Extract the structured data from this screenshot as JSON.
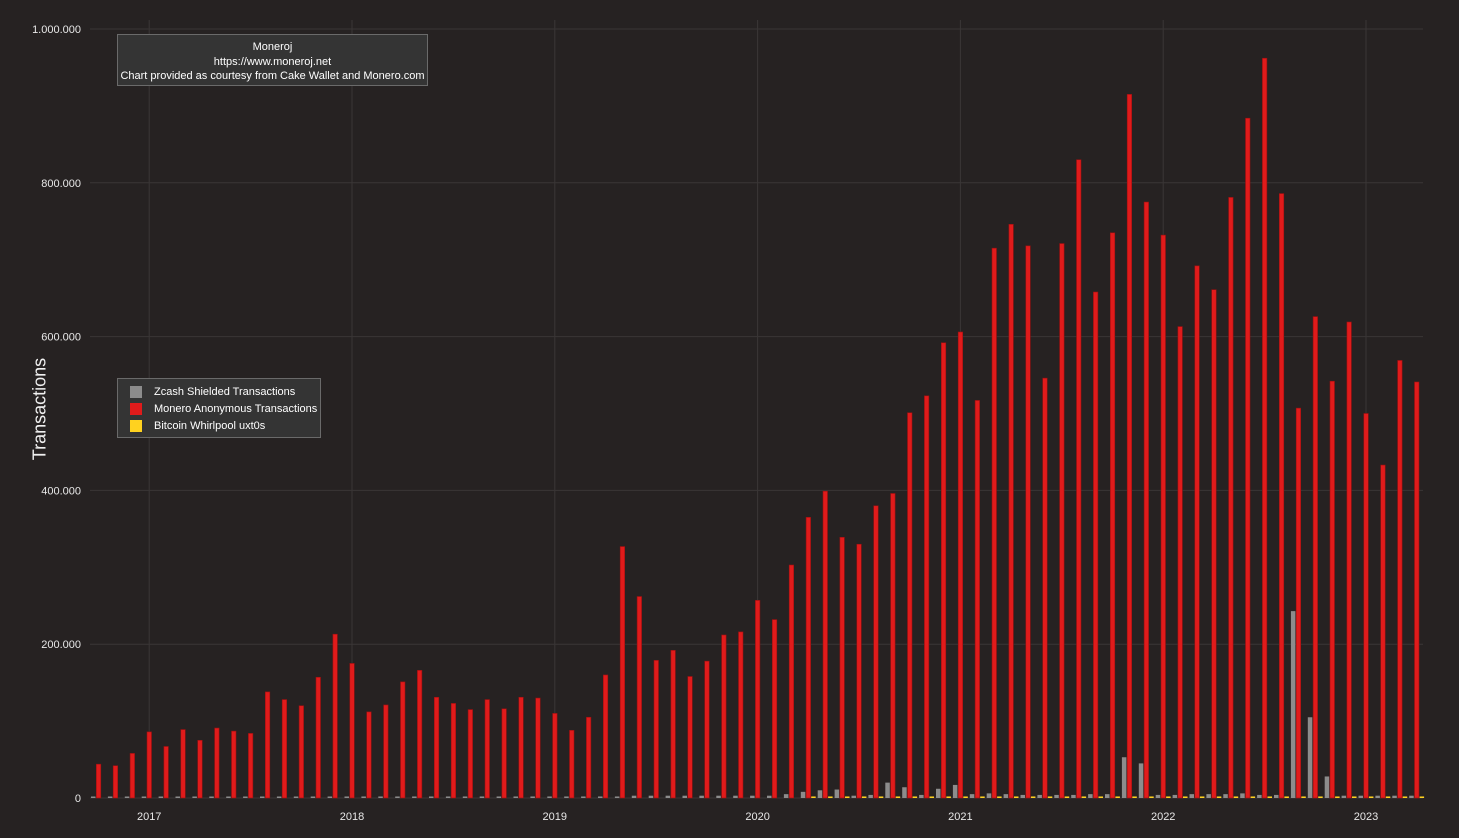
{
  "header": {
    "source_name": "Moneroj",
    "source_url": "https://www.moneroj.net",
    "credit": "Chart provided as courtesy from Cake Wallet and Monero.com"
  },
  "chart_data": {
    "type": "bar",
    "ylabel": "Transactions",
    "ylim": [
      0,
      1000000
    ],
    "y_ticks": [
      0,
      200000,
      400000,
      600000,
      800000,
      1000000
    ],
    "y_tick_labels": [
      "0",
      "200.000",
      "400.000",
      "600.000",
      "800.000",
      "1.000.000"
    ],
    "x_tick_labels": [
      "2017",
      "2018",
      "2019",
      "2020",
      "2021",
      "2022",
      "2023"
    ],
    "x_start": "2016-10",
    "x_end": "2023-04",
    "grid": true,
    "legend_position": "left-middle",
    "categories": [
      "2016-10",
      "2016-11",
      "2016-12",
      "2017-01",
      "2017-02",
      "2017-03",
      "2017-04",
      "2017-05",
      "2017-06",
      "2017-07",
      "2017-08",
      "2017-09",
      "2017-10",
      "2017-11",
      "2017-12",
      "2018-01",
      "2018-02",
      "2018-03",
      "2018-04",
      "2018-05",
      "2018-06",
      "2018-07",
      "2018-08",
      "2018-09",
      "2018-10",
      "2018-11",
      "2018-12",
      "2019-01",
      "2019-02",
      "2019-03",
      "2019-04",
      "2019-05",
      "2019-06",
      "2019-07",
      "2019-08",
      "2019-09",
      "2019-10",
      "2019-11",
      "2019-12",
      "2020-01",
      "2020-02",
      "2020-03",
      "2020-04",
      "2020-05",
      "2020-06",
      "2020-07",
      "2020-08",
      "2020-09",
      "2020-10",
      "2020-11",
      "2020-12",
      "2021-01",
      "2021-02",
      "2021-03",
      "2021-04",
      "2021-05",
      "2021-06",
      "2021-07",
      "2021-08",
      "2021-09",
      "2021-10",
      "2021-11",
      "2021-12",
      "2022-01",
      "2022-02",
      "2022-03",
      "2022-04",
      "2022-05",
      "2022-06",
      "2022-07",
      "2022-08",
      "2022-09",
      "2022-10",
      "2022-11",
      "2022-12",
      "2023-01",
      "2023-02",
      "2023-03",
      "2023-04"
    ],
    "series": [
      {
        "name": "Zcash Shielded Transactions",
        "color": "#8c8c8c",
        "values": [
          1500,
          1500,
          1500,
          1500,
          1500,
          1500,
          1500,
          1500,
          1500,
          1500,
          1500,
          1500,
          1500,
          1500,
          1500,
          2000,
          2000,
          2000,
          2000,
          2000,
          2000,
          2000,
          2000,
          2000,
          2000,
          2000,
          2000,
          2000,
          2000,
          2000,
          2000,
          2000,
          3000,
          3000,
          3000,
          3000,
          3000,
          3000,
          3000,
          3000,
          3000,
          5000,
          8000,
          10000,
          11000,
          3000,
          4000,
          20000,
          14000,
          4000,
          12000,
          17000,
          5000,
          6000,
          5000,
          4000,
          4000,
          4000,
          4000,
          5000,
          5000,
          53000,
          45000,
          4000,
          4000,
          5000,
          5000,
          5000,
          6000,
          4000,
          4000,
          243000,
          105000,
          28000,
          3000,
          3000,
          3000,
          3000,
          3000
        ]
      },
      {
        "name": "Monero Anonymous Transactions",
        "color": "#e01b1b",
        "values": [
          44000,
          42000,
          58000,
          86000,
          67000,
          89000,
          75000,
          91000,
          87000,
          84000,
          138000,
          128000,
          120000,
          157000,
          213000,
          175000,
          112000,
          121000,
          151000,
          166000,
          131000,
          123000,
          115000,
          128000,
          116000,
          131000,
          130000,
          110000,
          88000,
          105000,
          160000,
          327000,
          262000,
          179000,
          192000,
          158000,
          178000,
          212000,
          216000,
          257000,
          232000,
          303000,
          365000,
          399000,
          339000,
          330000,
          380000,
          396000,
          501000,
          523000,
          592000,
          606000,
          517000,
          715000,
          746000,
          718000,
          546000,
          721000,
          830000,
          658000,
          735000,
          915000,
          775000,
          732000,
          613000,
          692000,
          661000,
          781000,
          884000,
          962000,
          786000,
          507000,
          626000,
          542000,
          619000,
          500000,
          433000,
          569000,
          541000
        ]
      },
      {
        "name": "Bitcoin Whirlpool uxt0s",
        "color": "#ffd21f",
        "values": [
          0,
          0,
          0,
          0,
          0,
          0,
          0,
          0,
          0,
          0,
          0,
          0,
          0,
          0,
          0,
          0,
          0,
          0,
          0,
          0,
          0,
          0,
          0,
          0,
          0,
          0,
          0,
          0,
          0,
          0,
          0,
          0,
          0,
          0,
          0,
          0,
          0,
          0,
          0,
          0,
          0,
          0,
          2000,
          2000,
          2000,
          2000,
          2000,
          2000,
          2000,
          2000,
          2000,
          2000,
          2000,
          2000,
          2000,
          2000,
          2000,
          2000,
          2000,
          2000,
          2000,
          2000,
          2000,
          2000,
          2000,
          2000,
          2000,
          2000,
          2000,
          2000,
          2000,
          2000,
          2000,
          2000,
          2000,
          2000,
          2000,
          2000,
          2000
        ]
      }
    ]
  }
}
